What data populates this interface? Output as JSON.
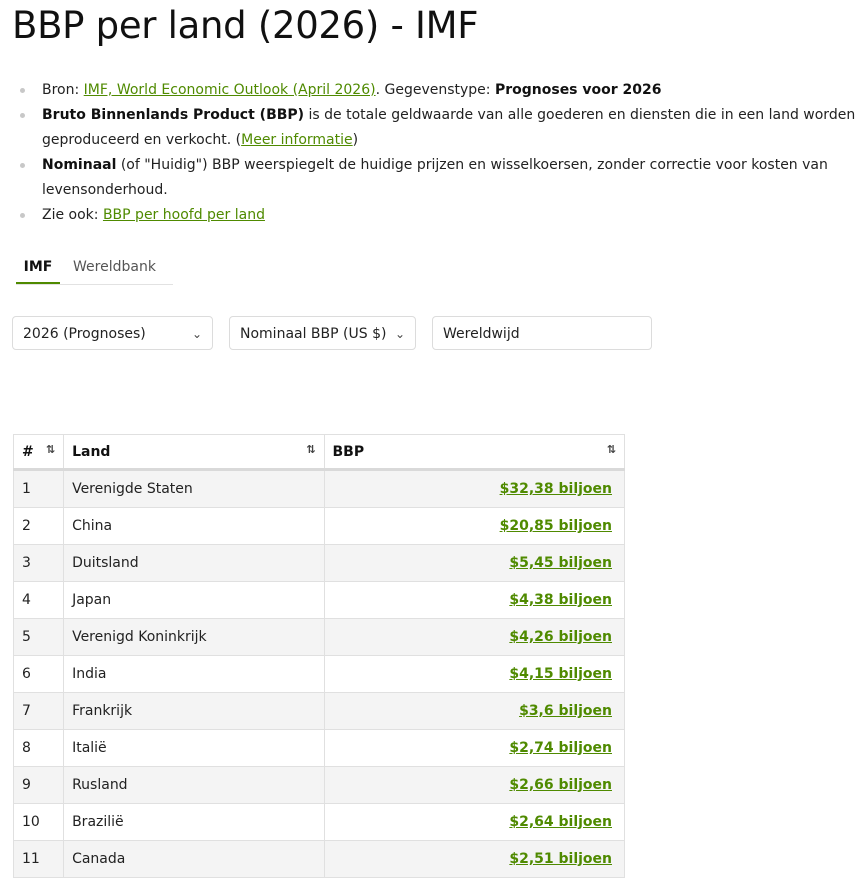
{
  "page_title": "BBP per land (2026) - IMF",
  "info": {
    "source_label": "Bron: ",
    "source_link": "IMF, World Economic Outlook (April 2026)",
    "datatype_label": ". Gegevenstype: ",
    "datatype_value": "Prognoses voor 2026",
    "bbp_term": "Bruto Binnenlands Product (BBP)",
    "bbp_text_1": " is de totale geldwaarde van alle goederen en diensten die in een land worden",
    "bbp_text_2": "geproduceerd en verkocht. (",
    "bbp_more_link": "Meer informatie",
    "bbp_text_3": ")",
    "nominal_term": "Nominaal",
    "nominal_text_1": " (of \"Huidig\") BBP weerspiegelt de huidige prijzen en wisselkoersen, zonder correctie voor kosten van",
    "nominal_text_2": "levensonderhoud.",
    "see_also_label": "Zie ook: ",
    "see_also_link": "BBP per hoofd per land"
  },
  "tabs": [
    {
      "label": "IMF",
      "active": true
    },
    {
      "label": "Wereldbank",
      "active": false
    }
  ],
  "filters": {
    "year": "2026 (Prognoses)",
    "type": "Nominaal BBP (US $)",
    "region": "Wereldwijd"
  },
  "table": {
    "headers": {
      "rank": "#",
      "country": "Land",
      "gdp": "BBP"
    },
    "rows": [
      {
        "rank": "1",
        "country": "Verenigde Staten",
        "gdp": "$32,38 biljoen"
      },
      {
        "rank": "2",
        "country": "China",
        "gdp": "$20,85 biljoen"
      },
      {
        "rank": "3",
        "country": "Duitsland",
        "gdp": "$5,45 biljoen"
      },
      {
        "rank": "4",
        "country": "Japan",
        "gdp": "$4,38 biljoen"
      },
      {
        "rank": "5",
        "country": "Verenigd Koninkrijk",
        "gdp": "$4,26 biljoen"
      },
      {
        "rank": "6",
        "country": "India",
        "gdp": "$4,15 biljoen"
      },
      {
        "rank": "7",
        "country": "Frankrijk",
        "gdp": "$3,6 biljoen"
      },
      {
        "rank": "8",
        "country": "Italië",
        "gdp": "$2,74 biljoen"
      },
      {
        "rank": "9",
        "country": "Rusland",
        "gdp": "$2,66 biljoen"
      },
      {
        "rank": "10",
        "country": "Brazilië",
        "gdp": "$2,64 biljoen"
      },
      {
        "rank": "11",
        "country": "Canada",
        "gdp": "$2,51 biljoen"
      }
    ]
  },
  "icons": {
    "sort": "sort-arrows-icon",
    "dropdown": "chevron-down-icon",
    "bullet": "bullet-icon"
  },
  "colors": {
    "link": "#4f8a00",
    "tab_active": "#4f8a00",
    "row_stripe": "#f4f4f4"
  }
}
